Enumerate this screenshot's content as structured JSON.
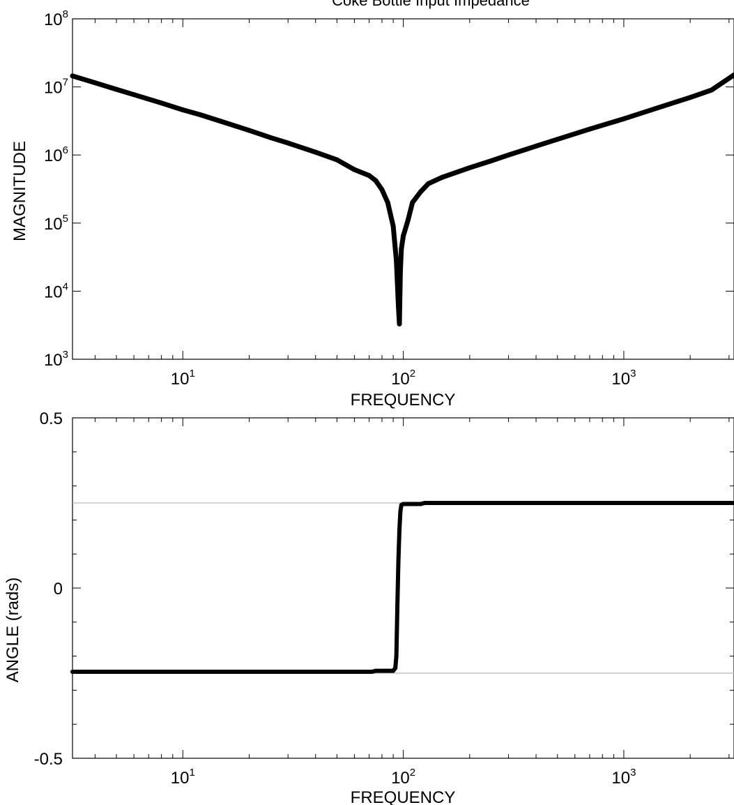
{
  "chart_data": [
    {
      "type": "line",
      "title": "Coke Bottle Input Impedance",
      "xlabel": "FREQUENCY",
      "ylabel": "MAGNITUDE",
      "xscale": "log",
      "yscale": "log",
      "xlim": [
        3.16,
        3160
      ],
      "ylim": [
        1000,
        100000000
      ],
      "grid": false,
      "legend": "none",
      "x_ticks": [
        {
          "value": 10,
          "base": "10",
          "exp": "1"
        },
        {
          "value": 100,
          "base": "10",
          "exp": "2"
        },
        {
          "value": 1000,
          "base": "10",
          "exp": "3"
        }
      ],
      "y_ticks": [
        {
          "value": 1000,
          "base": "10",
          "exp": "3"
        },
        {
          "value": 10000,
          "base": "10",
          "exp": "4"
        },
        {
          "value": 100000,
          "base": "10",
          "exp": "5"
        },
        {
          "value": 1000000,
          "base": "10",
          "exp": "6"
        },
        {
          "value": 10000000,
          "base": "10",
          "exp": "7"
        },
        {
          "value": 100000000,
          "base": "10",
          "exp": "8"
        }
      ],
      "series": [
        {
          "x": [
            3.16,
            4,
            5,
            6,
            8,
            10,
            12,
            15,
            20,
            25,
            30,
            40,
            50,
            60,
            70,
            75,
            80,
            85,
            90,
            93,
            95,
            96,
            97,
            98,
            100,
            105,
            110,
            120,
            130,
            150,
            200,
            250,
            300,
            400,
            500,
            700,
            1000,
            1500,
            2000,
            2500,
            3160
          ],
          "y": [
            14500000,
            11500000,
            9200000,
            7700000,
            5800000,
            4600000,
            3900000,
            3100000,
            2300000,
            1800000,
            1500000,
            1100000,
            850000,
            610000,
            500000,
            420000,
            310000,
            200000,
            90000,
            28000,
            6000,
            3300,
            20000,
            42000,
            65000,
            110000,
            200000,
            290000,
            380000,
            470000,
            650000,
            820000,
            1000000,
            1350000,
            1700000,
            2400000,
            3400000,
            5200000,
            7000000,
            9000000,
            15000000
          ]
        }
      ]
    },
    {
      "type": "line",
      "title": "",
      "xlabel": "FREQUENCY",
      "ylabel": "ANGLE (rads)",
      "xscale": "log",
      "yscale": "linear",
      "xlim": [
        3.16,
        3160
      ],
      "ylim": [
        -0.5,
        0.5
      ],
      "grid": false,
      "legend": "none",
      "reference_lines": [
        0.25,
        -0.25
      ],
      "x_ticks": [
        {
          "value": 10,
          "base": "10",
          "exp": "1"
        },
        {
          "value": 100,
          "base": "10",
          "exp": "2"
        },
        {
          "value": 1000,
          "base": "10",
          "exp": "3"
        }
      ],
      "y_ticks": [
        {
          "value": -0.5,
          "label": "-0.5"
        },
        {
          "value": 0,
          "label": "0"
        },
        {
          "value": 0.5,
          "label": "0.5"
        }
      ],
      "series": [
        {
          "x": [
            3.16,
            10,
            30,
            60,
            72,
            75,
            85,
            90,
            92,
            93,
            94,
            95,
            96,
            97,
            98,
            100,
            105,
            120,
            125,
            200,
            500,
            1000,
            3160
          ],
          "y": [
            -0.246,
            -0.246,
            -0.246,
            -0.246,
            -0.246,
            -0.243,
            -0.243,
            -0.243,
            -0.235,
            -0.2,
            -0.05,
            0.08,
            0.17,
            0.225,
            0.244,
            0.247,
            0.247,
            0.247,
            0.25,
            0.25,
            0.25,
            0.25,
            0.25
          ]
        }
      ]
    }
  ]
}
